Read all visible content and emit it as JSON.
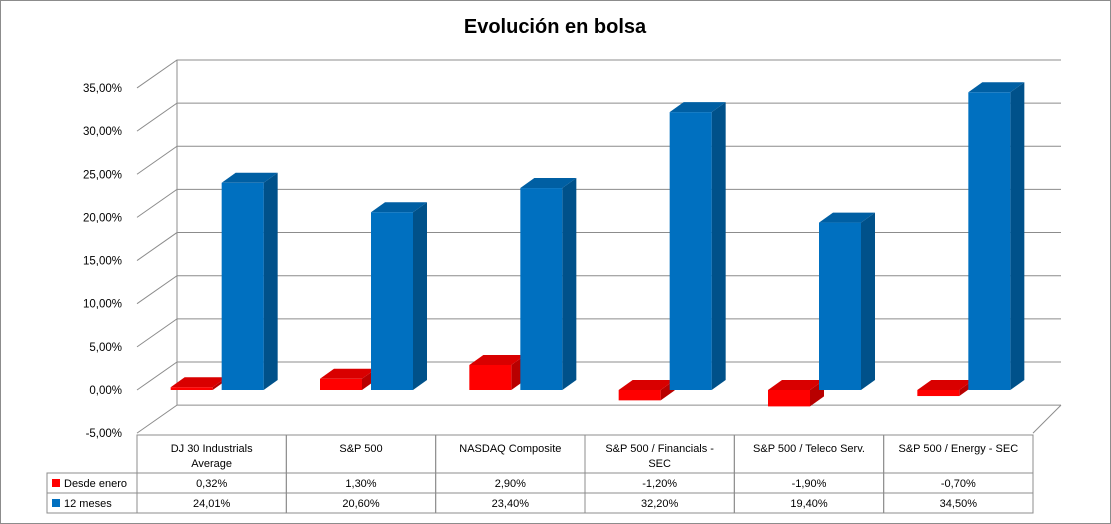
{
  "chart_data": {
    "type": "bar",
    "title": "Evolución en bolsa",
    "categories": [
      [
        "DJ 30 Industrials",
        "Average"
      ],
      [
        "S&P 500"
      ],
      [
        "NASDAQ Composite"
      ],
      [
        "S&P 500 / Financials -",
        "SEC"
      ],
      [
        "S&P 500 / Teleco Serv."
      ],
      [
        "S&P 500 / Energy - SEC"
      ]
    ],
    "series": [
      {
        "name": "Desde enero",
        "color": "#ff0000",
        "values": [
          0.32,
          1.3,
          2.9,
          -1.2,
          -1.9,
          -0.7
        ],
        "labels": [
          "0,32%",
          "1,30%",
          "2,90%",
          "-1,20%",
          "-1,90%",
          "-0,70%"
        ]
      },
      {
        "name": "12 meses",
        "color": "#0070c0",
        "values": [
          24.01,
          20.6,
          23.4,
          32.2,
          19.4,
          34.5
        ],
        "labels": [
          "24,01%",
          "20,60%",
          "23,40%",
          "32,20%",
          "19,40%",
          "34,50%"
        ]
      }
    ],
    "yticks": [
      "-5,00%",
      "0,00%",
      "5,00%",
      "10,00%",
      "15,00%",
      "20,00%",
      "25,00%",
      "30,00%",
      "35,00%"
    ],
    "ylim": [
      -5,
      35
    ],
    "grid": true,
    "data_table": true
  }
}
